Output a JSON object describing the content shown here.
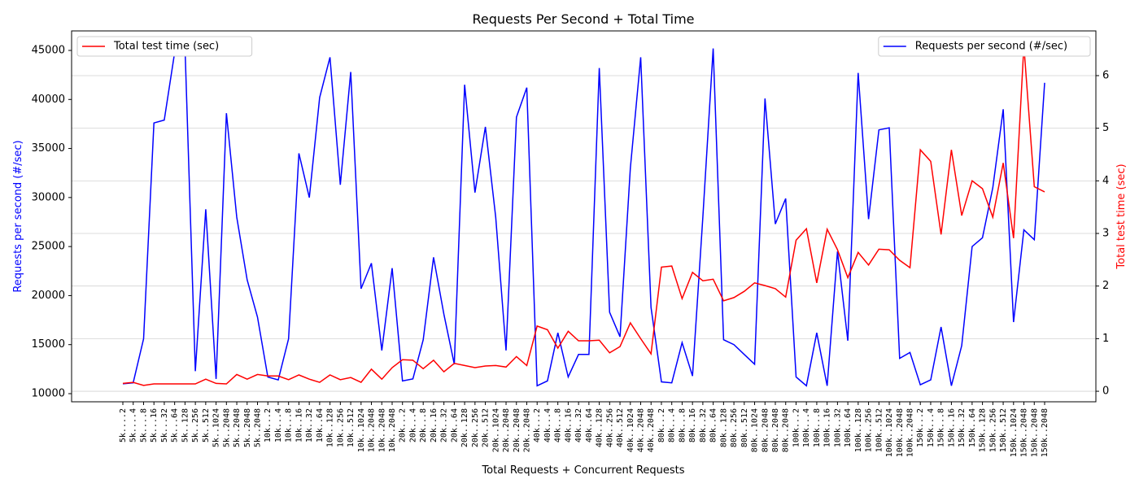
{
  "chart_data": {
    "type": "line",
    "title": "Requests Per Second + Total Time",
    "xlabel": "Total Requests + Concurrent Requests",
    "ylabel": "Requests per second (#/sec)",
    "y2label": "Total test time (sec)",
    "categories": [
      "5k....2",
      "5k....4",
      "5k....8",
      "5k...16",
      "5k...32",
      "5k...64",
      "5k..128",
      "5k..256",
      "5k..512",
      "5k..1024",
      "5k..2048",
      "5k..2048",
      "5k..2048",
      "5k..2048",
      "10k...2",
      "10k...4",
      "10k...8",
      "10k..16",
      "10k..32",
      "10k..64",
      "10k..128",
      "10k..256",
      "10k..512",
      "10k..1024",
      "10k..2048",
      "10k..2048",
      "10k..2048",
      "20k...2",
      "20k...4",
      "20k...8",
      "20k..16",
      "20k..32",
      "20k..64",
      "20k..128",
      "20k..256",
      "20k..512",
      "20k..1024",
      "20k..2048",
      "20k..2048",
      "20k..2048",
      "40k...2",
      "40k...4",
      "40k...8",
      "40k..16",
      "40k..32",
      "40k..64",
      "40k..128",
      "40k..256",
      "40k..512",
      "40k..1024",
      "40k..2048",
      "40k..2048",
      "80k...2",
      "80k...4",
      "80k...8",
      "80k..16",
      "80k..32",
      "80k..64",
      "80k..128",
      "80k..256",
      "80k..512",
      "80k..1024",
      "80k..2048",
      "80k..2048",
      "80k..2048",
      "100k...2",
      "100k...4",
      "100k...8",
      "100k..16",
      "100k..32",
      "100k..64",
      "100k..128",
      "100k..256",
      "100k..512",
      "100k..1024",
      "100k..2048",
      "100k..2048",
      "150k...2",
      "150k...4",
      "150k...8",
      "150k..16",
      "150k..32",
      "150k..64",
      "150k..128",
      "150k..256",
      "150k..512",
      "150k..1024",
      "150k..2048",
      "150k..2048",
      "150k..2048"
    ],
    "series": [
      {
        "name": "Requests per second (#/sec)",
        "color": "#0000ff",
        "axis": "y",
        "legend": "upper right",
        "values": [
          11000,
          11100,
          15600,
          37600,
          37900,
          44800,
          45300,
          12300,
          28800,
          11500,
          38600,
          28000,
          21600,
          17800,
          11700,
          11400,
          15600,
          34500,
          30000,
          40200,
          44300,
          31300,
          42800,
          20700,
          23300,
          14400,
          22800,
          11300,
          11500,
          15500,
          23900,
          18100,
          13000,
          41500,
          30500,
          37200,
          28000,
          14400,
          38200,
          41200,
          10800,
          11300,
          16200,
          11700,
          14000,
          14000,
          43200,
          18300,
          15800,
          33000,
          44300,
          18800,
          11200,
          11100,
          15200,
          11800,
          28000,
          45200,
          15500,
          15000,
          14000,
          13000,
          40100,
          27300,
          29900,
          11700,
          10800,
          16200,
          10800,
          24500,
          15400,
          42700,
          27800,
          36900,
          37100,
          13600,
          14200,
          10900,
          11400,
          16800,
          10800,
          14900,
          25000,
          25900,
          31000,
          39000,
          17300,
          26700,
          25700,
          41700
        ]
      },
      {
        "name": "Total test time (sec)",
        "color": "#ff0000",
        "axis": "y2",
        "legend": "upper left",
        "values": [
          0.15,
          0.17,
          0.11,
          0.14,
          0.14,
          0.14,
          0.14,
          0.14,
          0.23,
          0.15,
          0.14,
          0.32,
          0.23,
          0.32,
          0.29,
          0.29,
          0.22,
          0.31,
          0.23,
          0.17,
          0.31,
          0.22,
          0.26,
          0.17,
          0.42,
          0.23,
          0.45,
          0.6,
          0.59,
          0.43,
          0.59,
          0.37,
          0.53,
          0.49,
          0.45,
          0.48,
          0.49,
          0.46,
          0.66,
          0.49,
          1.24,
          1.17,
          0.82,
          1.14,
          0.96,
          0.96,
          0.97,
          0.73,
          0.85,
          1.3,
          1.0,
          0.71,
          2.36,
          2.38,
          1.76,
          2.26,
          2.1,
          2.13,
          1.72,
          1.78,
          1.9,
          2.06,
          2.01,
          1.95,
          1.79,
          2.87,
          3.09,
          2.06,
          3.08,
          2.69,
          2.16,
          2.64,
          2.4,
          2.7,
          2.69,
          2.49,
          2.35,
          4.59,
          4.37,
          2.98,
          4.59,
          3.34,
          4.0,
          3.85,
          3.31,
          4.34,
          2.91,
          6.57,
          3.89,
          3.79
        ]
      }
    ],
    "ylim": [
      9170,
      46990
    ],
    "yticks": [
      10000,
      15000,
      20000,
      25000,
      30000,
      35000,
      40000,
      45000
    ],
    "y2lim": [
      -0.2,
      6.85
    ],
    "y2ticks": [
      0,
      1,
      2,
      3,
      4,
      5,
      6
    ],
    "grid": "y2"
  }
}
